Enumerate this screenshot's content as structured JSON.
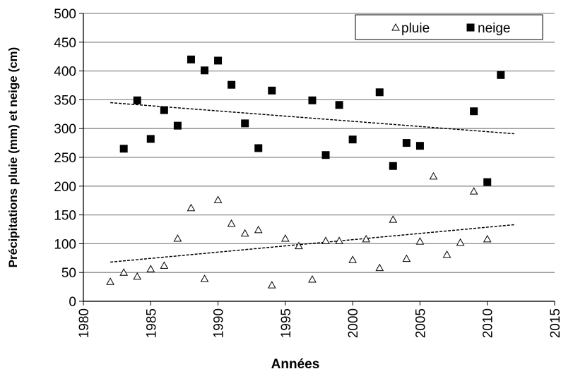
{
  "chart_data": {
    "type": "scatter",
    "x_label": "Années",
    "y_label": "Précipitations  pluie (mm) et neige (cm)",
    "xlim": [
      1980,
      2015
    ],
    "xticks": [
      1980,
      1985,
      1990,
      1995,
      2000,
      2005,
      2010,
      2015
    ],
    "ylim": [
      0,
      500
    ],
    "yticks": [
      0,
      50,
      100,
      150,
      200,
      250,
      300,
      350,
      400,
      450,
      500
    ],
    "grid": true,
    "legend": "top-right",
    "series": [
      {
        "name": "pluie",
        "marker": "triangle",
        "color": "#000000",
        "x": [
          1982,
          1983,
          1984,
          1985,
          1986,
          1987,
          1988,
          1989,
          1990,
          1991,
          1992,
          1993,
          1994,
          1995,
          1996,
          1997,
          1998,
          1999,
          2000,
          2001,
          2002,
          2003,
          2004,
          2005,
          2006,
          2007,
          2008,
          2009,
          2010
        ],
        "values": [
          34,
          50,
          43,
          56,
          62,
          109,
          162,
          39,
          176,
          135,
          118,
          124,
          28,
          109,
          96,
          38,
          105,
          105,
          72,
          108,
          58,
          142,
          74,
          104,
          217,
          81,
          102,
          191,
          108
        ]
      },
      {
        "name": "neige",
        "marker": "square",
        "color": "#000000",
        "x": [
          1983,
          1984,
          1985,
          1986,
          1987,
          1988,
          1989,
          1990,
          1991,
          1992,
          1993,
          1994,
          1997,
          1998,
          1999,
          2000,
          2002,
          2003,
          2004,
          2005,
          2009,
          2010,
          2011
        ],
        "values": [
          265,
          349,
          282,
          332,
          305,
          420,
          401,
          418,
          376,
          309,
          266,
          366,
          349,
          254,
          341,
          281,
          363,
          235,
          275,
          270,
          330,
          207,
          393
        ]
      }
    ],
    "trends": [
      {
        "x": [
          1982,
          2012
        ],
        "values": [
          68,
          133
        ]
      },
      {
        "x": [
          1982,
          2012
        ],
        "values": [
          345,
          291
        ]
      }
    ]
  }
}
